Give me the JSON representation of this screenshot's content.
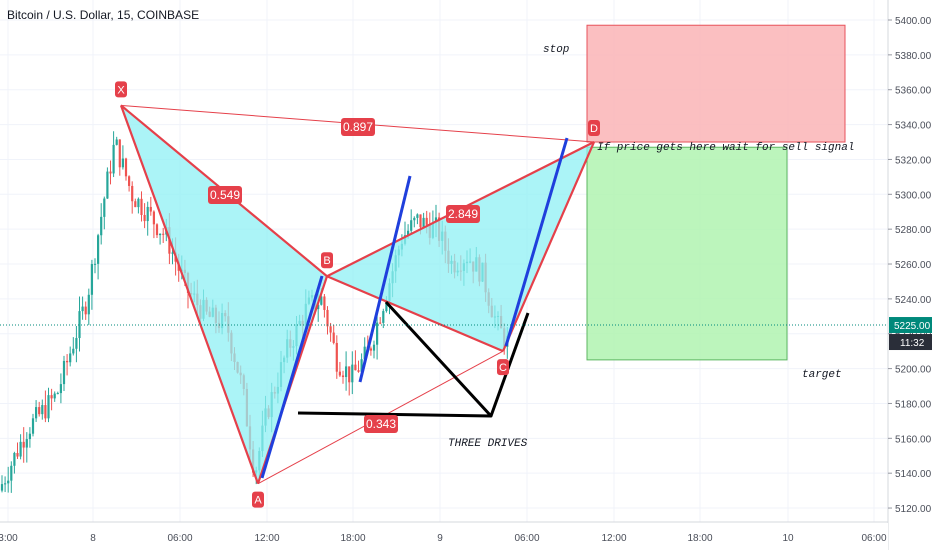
{
  "title": "Bitcoin / U.S. Dollar, 15, COINBASE",
  "colors": {
    "up": "#26a69a",
    "down": "#ef5350",
    "pattern_stroke": "#e5404a",
    "pattern_fill": "#8ff0f4",
    "stop_fill": "#fbb9bb",
    "target_fill": "#b5f5b5",
    "blue_line": "#1f3fdc",
    "price_line": "#00897b"
  },
  "chart_data": {
    "type": "candlestick",
    "y_range": [
      5110,
      5410
    ],
    "y_ticks": [
      5120,
      5140,
      5160,
      5180,
      5200,
      5220,
      5240,
      5260,
      5280,
      5300,
      5320,
      5340,
      5360,
      5380,
      5400
    ],
    "y_tick_labels": [
      "5120.00",
      "5140.00",
      "5160.00",
      "5180.00",
      "5200.00",
      "5220.00",
      "5240.00",
      "5260.00",
      "5280.00",
      "5300.00",
      "5320.00",
      "5340.00",
      "5360.00",
      "5380.00",
      "5400.00"
    ],
    "x_tick_labels": [
      "3:00",
      "8",
      "06:00",
      "12:00",
      "18:00",
      "9",
      "06:00",
      "12:00",
      "18:00",
      "10",
      "06:00"
    ],
    "current_price": "5225.00",
    "countdown": "11:32",
    "pattern_points": [
      {
        "label": "X",
        "price": 5351
      },
      {
        "label": "A",
        "price": 5134
      },
      {
        "label": "B",
        "price": 5253
      },
      {
        "label": "C",
        "price": 5210
      },
      {
        "label": "D",
        "price": 5330
      }
    ],
    "ratios": [
      "0.549",
      "0.897",
      "2.849",
      "0.343"
    ],
    "annotations": {
      "stop": "stop",
      "d_note": "If price gets here wait for sell signal",
      "target": "target",
      "three_drives": "THREE DRIVES"
    },
    "stop_zone": [
      5330,
      5397
    ],
    "target_zone": [
      5205,
      5327
    ]
  }
}
